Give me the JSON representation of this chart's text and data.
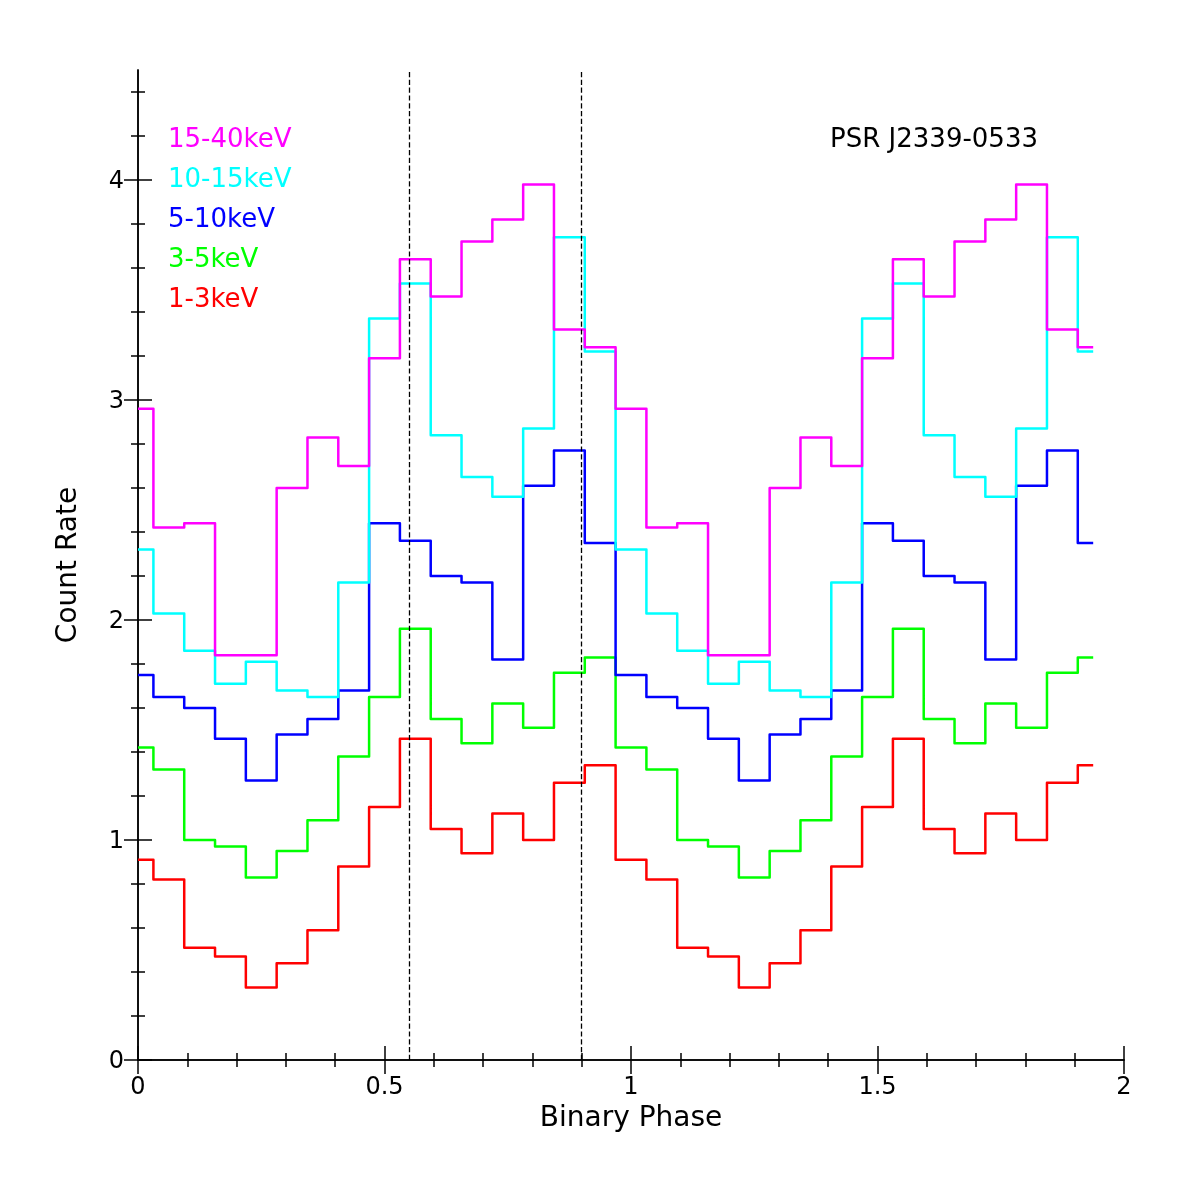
{
  "chart_data": {
    "type": "step",
    "xlabel": "Binary Phase",
    "ylabel": "Count Rate",
    "x": [
      0,
      0.0625,
      0.125,
      0.1875,
      0.25,
      0.3125,
      0.375,
      0.4375,
      0.5,
      0.5625,
      0.625,
      0.6875,
      0.75,
      0.8125,
      0.875,
      0.9375,
      1,
      1.0625,
      1.125,
      1.1875,
      1.25,
      1.3125,
      1.375,
      1.4375,
      1.5,
      1.5625,
      1.625,
      1.6875,
      1.75,
      1.8125,
      1.875,
      1.9375
    ],
    "series": [
      {
        "name": "1-3keV",
        "color": "#ff0000",
        "values": [
          0.91,
          0.82,
          0.51,
          0.47,
          0.33,
          0.44,
          0.59,
          0.88,
          1.15,
          1.46,
          1.05,
          0.94,
          1.12,
          1.0,
          1.26,
          1.34,
          0.91,
          0.82,
          0.51,
          0.47,
          0.33,
          0.44,
          0.59,
          0.88,
          1.15,
          1.46,
          1.05,
          0.94,
          1.12,
          1.0,
          1.26,
          1.34
        ]
      },
      {
        "name": "3-5keV",
        "color": "#00ff00",
        "values": [
          1.42,
          1.32,
          1.0,
          0.97,
          0.83,
          0.95,
          1.09,
          1.38,
          1.65,
          1.96,
          1.55,
          1.44,
          1.62,
          1.51,
          1.76,
          1.83,
          1.42,
          1.32,
          1.0,
          0.97,
          0.83,
          0.95,
          1.09,
          1.38,
          1.65,
          1.96,
          1.55,
          1.44,
          1.62,
          1.51,
          1.76,
          1.83
        ]
      },
      {
        "name": "5-10keV",
        "color": "#0000ff",
        "values": [
          1.75,
          1.65,
          1.6,
          1.46,
          1.27,
          1.48,
          1.55,
          1.68,
          2.44,
          2.36,
          2.2,
          2.17,
          1.82,
          2.61,
          2.77,
          2.35,
          1.75,
          1.65,
          1.6,
          1.46,
          1.27,
          1.48,
          1.55,
          1.68,
          2.44,
          2.36,
          2.2,
          2.17,
          1.82,
          2.61,
          2.77,
          2.35
        ]
      },
      {
        "name": "10-15keV",
        "color": "#00ffff",
        "values": [
          2.32,
          2.03,
          1.86,
          1.71,
          1.81,
          1.68,
          1.65,
          2.17,
          3.37,
          3.53,
          2.84,
          2.65,
          2.56,
          2.87,
          3.74,
          3.22,
          2.32,
          2.03,
          1.86,
          1.71,
          1.81,
          1.68,
          1.65,
          2.17,
          3.37,
          3.53,
          2.84,
          2.65,
          2.56,
          2.87,
          3.74,
          3.22
        ]
      },
      {
        "name": "15-40keV",
        "color": "#ff00ff",
        "values": [
          2.96,
          2.42,
          2.44,
          1.84,
          1.84,
          2.6,
          2.83,
          2.7,
          3.19,
          3.64,
          3.47,
          3.72,
          3.82,
          3.98,
          3.32,
          3.24,
          2.96,
          2.42,
          2.44,
          1.84,
          1.84,
          2.6,
          2.83,
          2.7,
          3.19,
          3.64,
          3.47,
          3.72,
          3.82,
          3.98,
          3.32,
          3.24
        ]
      }
    ],
    "xlim": [
      0,
      2
    ],
    "xticks": [
      0,
      0.5,
      1,
      1.5,
      2
    ],
    "ylim": [
      0,
      4.5
    ],
    "yticks": [
      0,
      1,
      2,
      3,
      4
    ],
    "ref_lines": [
      {
        "axis": "x",
        "value": 0.55,
        "color": "#000000",
        "line_style": "dashed"
      },
      {
        "axis": "x",
        "value": 0.9,
        "color": "#000000",
        "line_style": "dashed"
      }
    ],
    "annotations": [
      "PSR J2339-0533"
    ],
    "grid": false,
    "legend": "top left",
    "marker": "none",
    "line_style": "solid"
  }
}
